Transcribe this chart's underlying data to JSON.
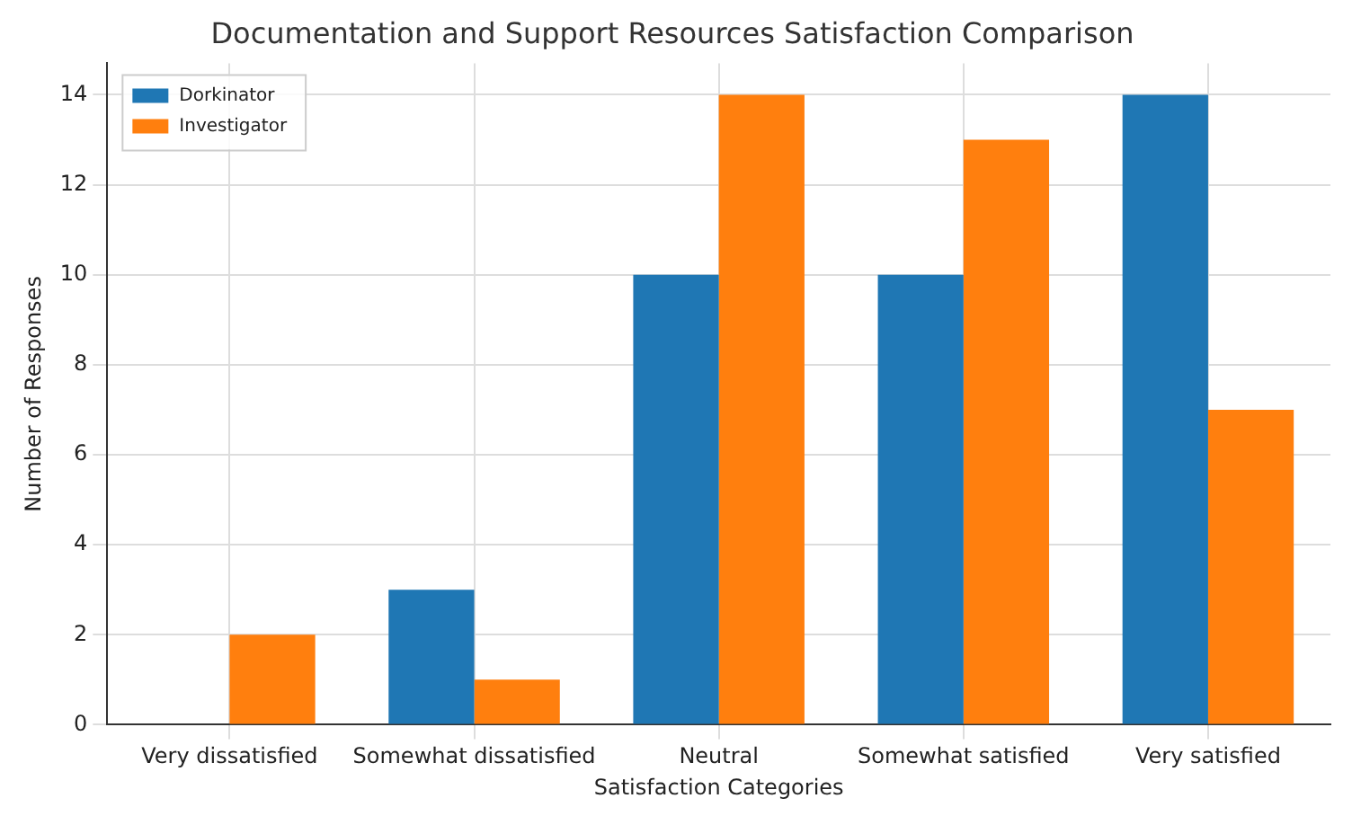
{
  "chart_data": {
    "type": "bar",
    "title": "Documentation and Support Resources Satisfaction Comparison",
    "xlabel": "Satisfaction Categories",
    "ylabel": "Number of Responses",
    "categories": [
      "Very dissatisfied",
      "Somewhat dissatisfied",
      "Neutral",
      "Somewhat satisfied",
      "Very satisfied"
    ],
    "series": [
      {
        "name": "Dorkinator",
        "color": "#1f77b4",
        "values": [
          0,
          3,
          10,
          10,
          14
        ]
      },
      {
        "name": "Investigator",
        "color": "#ff7f0e",
        "values": [
          2,
          1,
          14,
          13,
          7
        ]
      }
    ],
    "ylim": [
      0,
      14.7
    ],
    "yticks": [
      0,
      2,
      4,
      6,
      8,
      10,
      12,
      14
    ],
    "grid": true,
    "legend": "top left"
  }
}
